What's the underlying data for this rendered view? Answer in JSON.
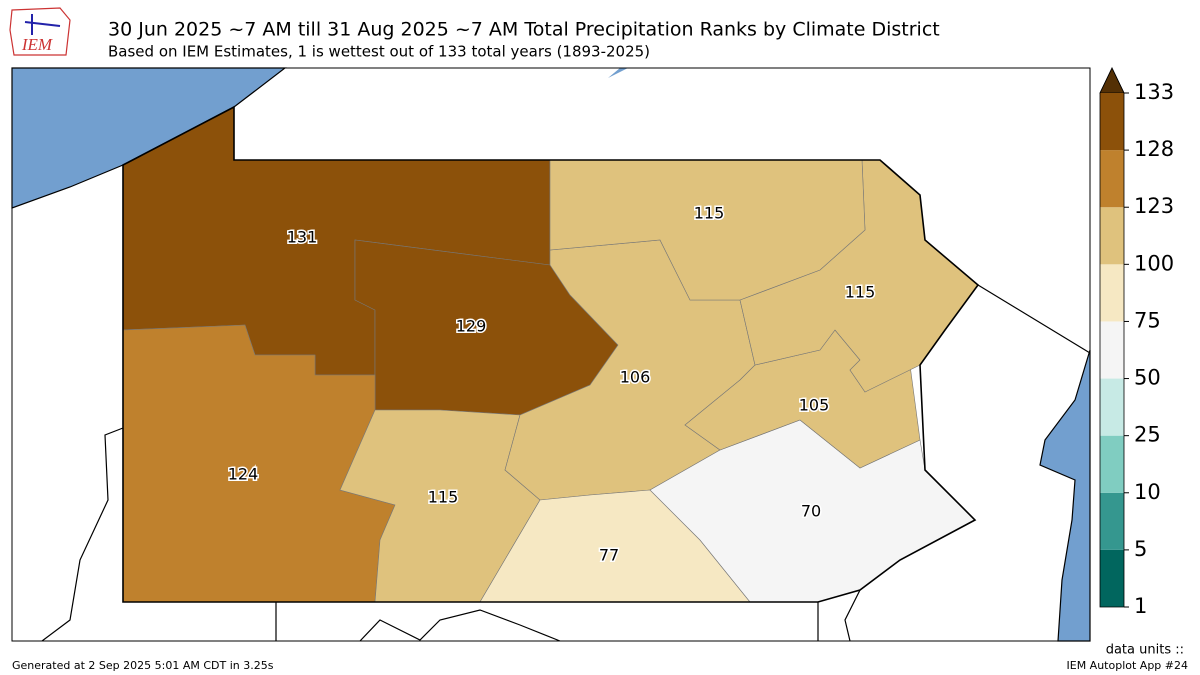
{
  "header": {
    "logo": "IEM",
    "title": "30 Jun 2025 ~7 AM till 31 Aug 2025 ~7 AM Total Precipitation Ranks by Climate District",
    "subtitle": "Based on IEM Estimates, 1 is wettest out of 133 total years (1893-2025)"
  },
  "districts": [
    {
      "label": "131",
      "color": "#8c510a"
    },
    {
      "label": "129",
      "color": "#8c510a"
    },
    {
      "label": "124",
      "color": "#bf812d"
    },
    {
      "label": "115",
      "color": "#dfc27d"
    },
    {
      "label": "106",
      "color": "#dfc27d"
    },
    {
      "label": "77",
      "color": "#f6e8c3"
    },
    {
      "label": "70",
      "color": "#f5f5f5"
    },
    {
      "label": "105",
      "color": "#dfc27d"
    },
    {
      "label": "115",
      "color": "#dfc27d"
    },
    {
      "label": "115",
      "color": "#dfc27d"
    }
  ],
  "colorbar": {
    "ticks": [
      1,
      5,
      10,
      25,
      50,
      75,
      100,
      123,
      128,
      133
    ],
    "colors": [
      "#01665e",
      "#35978f",
      "#80cdc1",
      "#c7eae5",
      "#f5f5f5",
      "#f6e8c3",
      "#dfc27d",
      "#bf812d",
      "#8c510a"
    ],
    "extend_color": "#543005",
    "units": "data units ::"
  },
  "footer": {
    "left": "Generated at 2 Sep 2025 5:01 AM CDT in 3.25s",
    "right": "IEM Autoplot App #24"
  }
}
